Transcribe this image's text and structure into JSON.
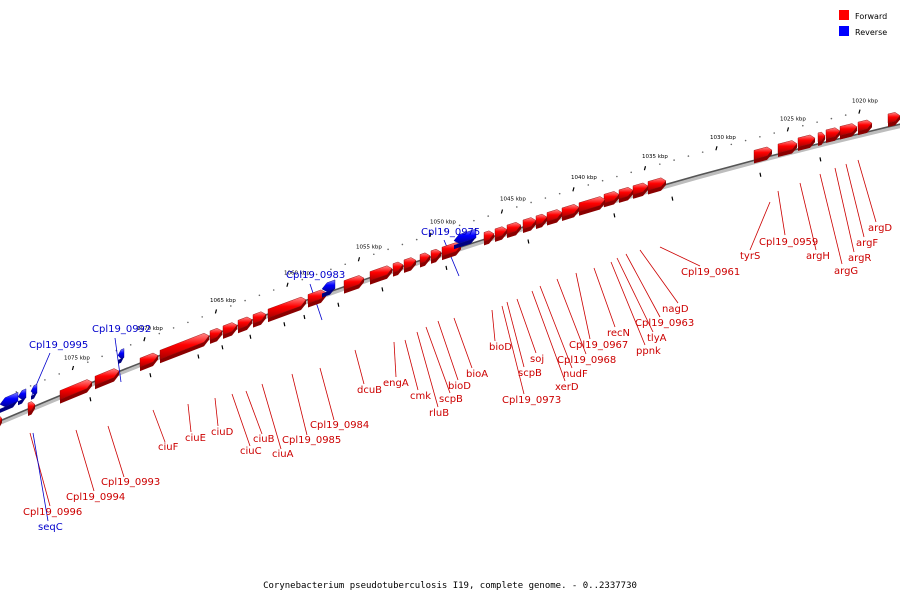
{
  "legend": [
    {
      "label": "Forward",
      "color": "#ff0000"
    },
    {
      "label": "Reverse",
      "color": "#0000ff"
    }
  ],
  "footer": "Corynebacterium pseudotuberculosis I19, complete genome. - 0..2337730",
  "ticks": [
    "1020 kbp",
    "1025 kbp",
    "1030 kbp",
    "1035 kbp",
    "1040 kbp",
    "1045 kbp",
    "1050 kbp",
    "1055 kbp",
    "1060 kbp",
    "1065 kbp",
    "1070 kbp",
    "1075 kbp"
  ],
  "genes": [
    {
      "label": "argD",
      "strand": "forward"
    },
    {
      "label": "argF",
      "strand": "forward"
    },
    {
      "label": "argR",
      "strand": "forward"
    },
    {
      "label": "argG",
      "strand": "forward"
    },
    {
      "label": "argH",
      "strand": "forward"
    },
    {
      "label": "Cpl19_0959",
      "strand": "forward"
    },
    {
      "label": "tyrS",
      "strand": "forward"
    },
    {
      "label": "Cpl19_0961",
      "strand": "forward"
    },
    {
      "label": "nagD",
      "strand": "forward"
    },
    {
      "label": "Cpl19_0963",
      "strand": "forward"
    },
    {
      "label": "tlyA",
      "strand": "forward"
    },
    {
      "label": "ppnk",
      "strand": "forward"
    },
    {
      "label": "recN",
      "strand": "forward"
    },
    {
      "label": "Cpl19_0967",
      "strand": "forward"
    },
    {
      "label": "Cpl19_0968",
      "strand": "forward"
    },
    {
      "label": "nudF",
      "strand": "forward"
    },
    {
      "label": "xerD",
      "strand": "forward"
    },
    {
      "label": "soj",
      "strand": "forward"
    },
    {
      "label": "scpB",
      "strand": "forward"
    },
    {
      "label": "Cpl19_0973",
      "strand": "forward"
    },
    {
      "label": "bioD",
      "strand": "forward"
    },
    {
      "label": "Cpl19_0975",
      "strand": "reverse"
    },
    {
      "label": "bioA",
      "strand": "forward"
    },
    {
      "label": "bioD",
      "strand": "forward"
    },
    {
      "label": "scpB",
      "strand": "forward"
    },
    {
      "label": "rluB",
      "strand": "forward"
    },
    {
      "label": "cmk",
      "strand": "forward"
    },
    {
      "label": "engA",
      "strand": "forward"
    },
    {
      "label": "dcuB",
      "strand": "forward"
    },
    {
      "label": "Cpl19_0983",
      "strand": "reverse"
    },
    {
      "label": "Cpl19_0984",
      "strand": "forward"
    },
    {
      "label": "Cpl19_0985",
      "strand": "forward"
    },
    {
      "label": "ciuA",
      "strand": "forward"
    },
    {
      "label": "ciuB",
      "strand": "forward"
    },
    {
      "label": "ciuC",
      "strand": "forward"
    },
    {
      "label": "ciuD",
      "strand": "forward"
    },
    {
      "label": "ciuE",
      "strand": "forward"
    },
    {
      "label": "ciuF",
      "strand": "forward"
    },
    {
      "label": "Cpl19_0992",
      "strand": "reverse"
    },
    {
      "label": "Cpl19_0993",
      "strand": "forward"
    },
    {
      "label": "Cpl19_0994",
      "strand": "forward"
    },
    {
      "label": "Cpl19_0995",
      "strand": "reverse"
    },
    {
      "label": "Cpl19_0996",
      "strand": "forward"
    },
    {
      "label": "seqC",
      "strand": "reverse"
    }
  ]
}
